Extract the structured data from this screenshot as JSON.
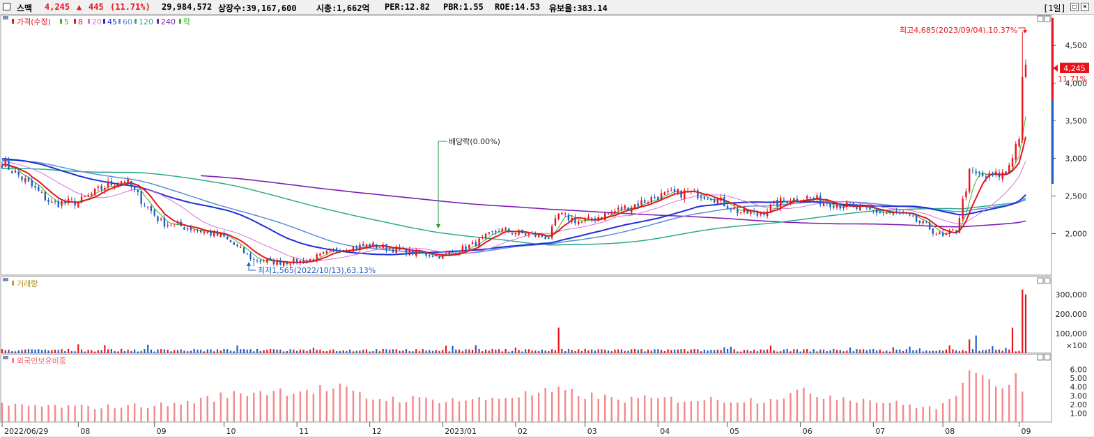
{
  "header": {
    "name": "스맥",
    "price": "4,245",
    "arrow": "▲",
    "change": "445",
    "change_pct": "(11.71%)",
    "volume": "29,984,572",
    "listed": "상장수:39,167,600",
    "mcap": "시총:1,662억",
    "per": "PER:12.82",
    "pbr": "PBR:1.55",
    "roe": "ROE:14.53",
    "reserve": "유보율:383.14",
    "period": "[1일]"
  },
  "colors": {
    "up": "#e8141c",
    "down": "#1e5fc8",
    "ma5": "#35b52c",
    "ma8": "#e8141c",
    "ma20": "#d870d8",
    "ma45": "#1f2fd6",
    "ma60": "#5a8fd6",
    "ma120": "#2bab8a",
    "ma240": "#7d1fb5",
    "foreign": "#f2888c"
  },
  "legend": {
    "price": "가격(수정)",
    "ma5": "5",
    "ma8": "8",
    "ma20": "20",
    "ma45": "45",
    "ma60": "60",
    "ma120": "120",
    "ma240": "240",
    "ex": "락"
  },
  "annotations": {
    "high": "최고4,685(2023/09/04),10.37%",
    "low": "최저1,565(2022/10/13),63.13%",
    "dividend": "배당락(0.00%)",
    "last_price": "4,245",
    "last_pct": "11.71%"
  },
  "panels": {
    "volume_title": "거래량",
    "foreign_title": "외국인보유비중",
    "volume_unit": "×100"
  },
  "chart_data": [
    {
      "type": "candlestick",
      "title": "가격(수정)",
      "x_labels": [
        "2022/06/29",
        "08",
        "09",
        "10",
        "11",
        "12",
        "2023/01",
        "02",
        "03",
        "04",
        "05",
        "06",
        "07",
        "08",
        "09"
      ],
      "y_ticks": [
        "4,500",
        "4,000",
        "3,500",
        "3,000",
        "2,500",
        "2,000"
      ],
      "ylim": [
        1450,
        4900
      ],
      "close_keypoints": [
        [
          "2022/06/29",
          2950
        ],
        [
          "2022/07/10",
          2700
        ],
        [
          "2022/07/20",
          2400
        ],
        [
          "2022/08/01",
          2420
        ],
        [
          "2022/08/12",
          2650
        ],
        [
          "2022/08/20",
          2720
        ],
        [
          "2022/08/28",
          2450
        ],
        [
          "2022/09/05",
          2150
        ],
        [
          "2022/09/20",
          2050
        ],
        [
          "2022/09/30",
          1950
        ],
        [
          "2022/10/13",
          1650
        ],
        [
          "2022/10/25",
          1620
        ],
        [
          "2022/11/05",
          1640
        ],
        [
          "2022/11/20",
          1800
        ],
        [
          "2022/12/01",
          1850
        ],
        [
          "2022/12/20",
          1750
        ],
        [
          "2023/01/02",
          1700
        ],
        [
          "2023/01/15",
          1850
        ],
        [
          "2023/01/25",
          2050
        ],
        [
          "2023/02/05",
          2000
        ],
        [
          "2023/02/15",
          1950
        ],
        [
          "2023/02/20",
          2250
        ],
        [
          "2023/03/01",
          2150
        ],
        [
          "2023/03/15",
          2300
        ],
        [
          "2023/03/25",
          2400
        ],
        [
          "2023/04/03",
          2500
        ],
        [
          "2023/04/15",
          2550
        ],
        [
          "2023/04/25",
          2500
        ],
        [
          "2023/05/05",
          2300
        ],
        [
          "2023/05/15",
          2250
        ],
        [
          "2023/05/25",
          2450
        ],
        [
          "2023/06/05",
          2480
        ],
        [
          "2023/06/15",
          2400
        ],
        [
          "2023/06/30",
          2300
        ],
        [
          "2023/07/15",
          2250
        ],
        [
          "2023/07/25",
          2100
        ],
        [
          "2023/08/01",
          1950
        ],
        [
          "2023/08/07",
          2050
        ],
        [
          "2023/08/12",
          2800
        ],
        [
          "2023/08/20",
          2750
        ],
        [
          "2023/08/28",
          2800
        ],
        [
          "2023/09/01",
          3300
        ],
        [
          "2023/09/04",
          4000
        ],
        [
          "2023/09/05",
          4245
        ]
      ],
      "high": {
        "date": "2023/09/04",
        "value": 4685
      },
      "low": {
        "date": "2022/10/13",
        "value": 1565
      },
      "last": 4245
    },
    {
      "type": "bar",
      "title": "거래량",
      "y_ticks": [
        "300,000",
        "200,000",
        "100,000"
      ],
      "ylim": [
        0,
        360000
      ],
      "unit": "×100",
      "spikes": [
        {
          "date": "2022/08/01",
          "value": 45000
        },
        {
          "date": "2023/02/20",
          "value": 130000
        },
        {
          "date": "2023/08/12",
          "value": 70000
        },
        {
          "date": "2023/08/15",
          "value": 90000
        },
        {
          "date": "2023/08/30",
          "value": 130000
        },
        {
          "date": "2023/09/04",
          "value": 325000
        },
        {
          "date": "2023/09/05",
          "value": 300000
        }
      ]
    },
    {
      "type": "bar",
      "title": "외국인보유비중",
      "y_ticks": [
        "6.00",
        "5.00",
        "4.00",
        "3.00",
        "2.00",
        "1.00"
      ],
      "ylim": [
        0,
        7
      ],
      "keypoints": [
        [
          "2022/06/29",
          1.9
        ],
        [
          "2022/08/05",
          1.7
        ],
        [
          "2022/09/10",
          2.0
        ],
        [
          "2022/10/01",
          3.0
        ],
        [
          "2022/10/15",
          3.5
        ],
        [
          "2022/11/20",
          3.8
        ],
        [
          "2022/12/01",
          2.7
        ],
        [
          "2023/01/15",
          2.5
        ],
        [
          "2023/02/20",
          3.5
        ],
        [
          "2023/03/15",
          2.6
        ],
        [
          "2023/04/10",
          2.6
        ],
        [
          "2023/05/15",
          2.5
        ],
        [
          "2023/06/01",
          3.4
        ],
        [
          "2023/07/01",
          2.5
        ],
        [
          "2023/07/31",
          1.5
        ],
        [
          "2023/08/12",
          5.1
        ],
        [
          "2023/08/28",
          4.3
        ],
        [
          "2023/08/31",
          6.0
        ],
        [
          "2023/09/05",
          3.1
        ]
      ]
    }
  ]
}
